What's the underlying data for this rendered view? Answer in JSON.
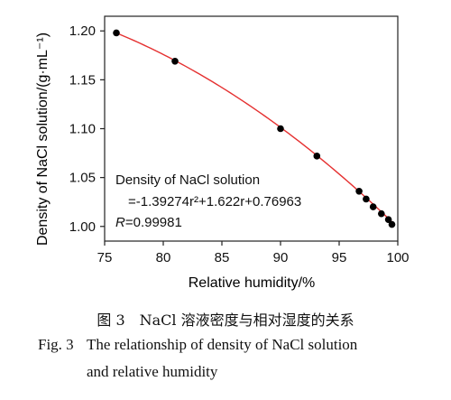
{
  "chart_data": {
    "type": "scatter",
    "xlabel": "Relative humidity/%",
    "ylabel": "Density of NaCl solution/(g·mL⁻¹)",
    "xlim": [
      75,
      100
    ],
    "ylim": [
      0.985,
      1.215
    ],
    "xticks": [
      "75",
      "80",
      "85",
      "90",
      "95",
      "100"
    ],
    "yticks": [
      "1.00",
      "1.05",
      "1.10",
      "1.15",
      "1.20"
    ],
    "grid": false,
    "series": [
      {
        "marker_color": "#000000",
        "x": [
          76.0,
          81.0,
          90.0,
          93.1,
          96.7,
          97.3,
          97.9,
          98.6,
          99.2,
          99.5
        ],
        "y": [
          1.198,
          1.169,
          1.1,
          1.072,
          1.036,
          1.028,
          1.02,
          1.013,
          1.007,
          1.002
        ]
      }
    ],
    "fit": {
      "color": "#e53030",
      "coefficients": [
        -1.39274,
        1.622,
        0.76963
      ],
      "x_range": [
        76.0,
        99.5
      ]
    },
    "annotation": {
      "line1": "Density of NaCl solution",
      "line2": "=-1.39274r²+1.622r+0.76963",
      "r_symbol": "R",
      "r_value": "=0.99981"
    }
  },
  "caption": {
    "cn": "图 3　NaCl 溶液密度与相对湿度的关系",
    "en_number": "Fig. 3",
    "en_line1": "The relationship of density of NaCl solution",
    "en_line2": "and relative humidity"
  }
}
